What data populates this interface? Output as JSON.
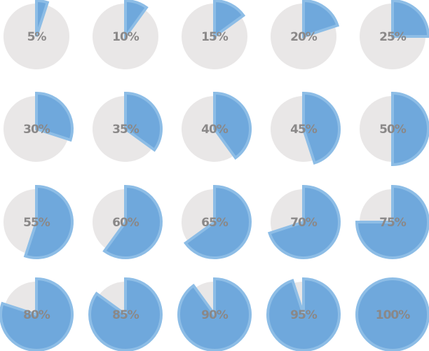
{
  "chart_data": [
    {
      "type": "pie",
      "values": [
        5,
        95
      ],
      "value_labels": [
        "5%",
        null
      ],
      "colors": [
        "#6fa8dc",
        "#e9e7e7"
      ]
    },
    {
      "type": "pie",
      "values": [
        10,
        90
      ],
      "value_labels": [
        "10%",
        null
      ],
      "colors": [
        "#6fa8dc",
        "#e9e7e7"
      ]
    },
    {
      "type": "pie",
      "values": [
        15,
        85
      ],
      "value_labels": [
        "15%",
        null
      ],
      "colors": [
        "#6fa8dc",
        "#e9e7e7"
      ]
    },
    {
      "type": "pie",
      "values": [
        20,
        80
      ],
      "value_labels": [
        "20%",
        null
      ],
      "colors": [
        "#6fa8dc",
        "#e9e7e7"
      ]
    },
    {
      "type": "pie",
      "values": [
        25,
        75
      ],
      "value_labels": [
        "25%",
        null
      ],
      "colors": [
        "#6fa8dc",
        "#e9e7e7"
      ]
    },
    {
      "type": "pie",
      "values": [
        30,
        70
      ],
      "value_labels": [
        "30%",
        null
      ],
      "colors": [
        "#6fa8dc",
        "#e9e7e7"
      ]
    },
    {
      "type": "pie",
      "values": [
        35,
        65
      ],
      "value_labels": [
        "35%",
        null
      ],
      "colors": [
        "#6fa8dc",
        "#e9e7e7"
      ]
    },
    {
      "type": "pie",
      "values": [
        40,
        60
      ],
      "value_labels": [
        "40%",
        null
      ],
      "colors": [
        "#6fa8dc",
        "#e9e7e7"
      ]
    },
    {
      "type": "pie",
      "values": [
        45,
        55
      ],
      "value_labels": [
        "45%",
        null
      ],
      "colors": [
        "#6fa8dc",
        "#e9e7e7"
      ]
    },
    {
      "type": "pie",
      "values": [
        50,
        50
      ],
      "value_labels": [
        "50%",
        null
      ],
      "colors": [
        "#6fa8dc",
        "#e9e7e7"
      ]
    },
    {
      "type": "pie",
      "values": [
        55,
        45
      ],
      "value_labels": [
        "55%",
        null
      ],
      "colors": [
        "#6fa8dc",
        "#e9e7e7"
      ]
    },
    {
      "type": "pie",
      "values": [
        60,
        40
      ],
      "value_labels": [
        "60%",
        null
      ],
      "colors": [
        "#6fa8dc",
        "#e9e7e7"
      ]
    },
    {
      "type": "pie",
      "values": [
        65,
        35
      ],
      "value_labels": [
        "65%",
        null
      ],
      "colors": [
        "#6fa8dc",
        "#e9e7e7"
      ]
    },
    {
      "type": "pie",
      "values": [
        70,
        30
      ],
      "value_labels": [
        "70%",
        null
      ],
      "colors": [
        "#6fa8dc",
        "#e9e7e7"
      ]
    },
    {
      "type": "pie",
      "values": [
        75,
        25
      ],
      "value_labels": [
        "75%",
        null
      ],
      "colors": [
        "#6fa8dc",
        "#e9e7e7"
      ]
    },
    {
      "type": "pie",
      "values": [
        80,
        20
      ],
      "value_labels": [
        "80%",
        null
      ],
      "colors": [
        "#6fa8dc",
        "#e9e7e7"
      ]
    },
    {
      "type": "pie",
      "values": [
        85,
        15
      ],
      "value_labels": [
        "85%",
        null
      ],
      "colors": [
        "#6fa8dc",
        "#e9e7e7"
      ]
    },
    {
      "type": "pie",
      "values": [
        90,
        10
      ],
      "value_labels": [
        "90%",
        null
      ],
      "colors": [
        "#6fa8dc",
        "#e9e7e7"
      ]
    },
    {
      "type": "pie",
      "values": [
        95,
        5
      ],
      "value_labels": [
        "95%",
        null
      ],
      "colors": [
        "#6fa8dc",
        "#e9e7e7"
      ]
    },
    {
      "type": "pie",
      "values": [
        100,
        0
      ],
      "value_labels": [
        "100%",
        null
      ],
      "colors": [
        "#6fa8dc",
        "#e9e7e7"
      ]
    }
  ]
}
